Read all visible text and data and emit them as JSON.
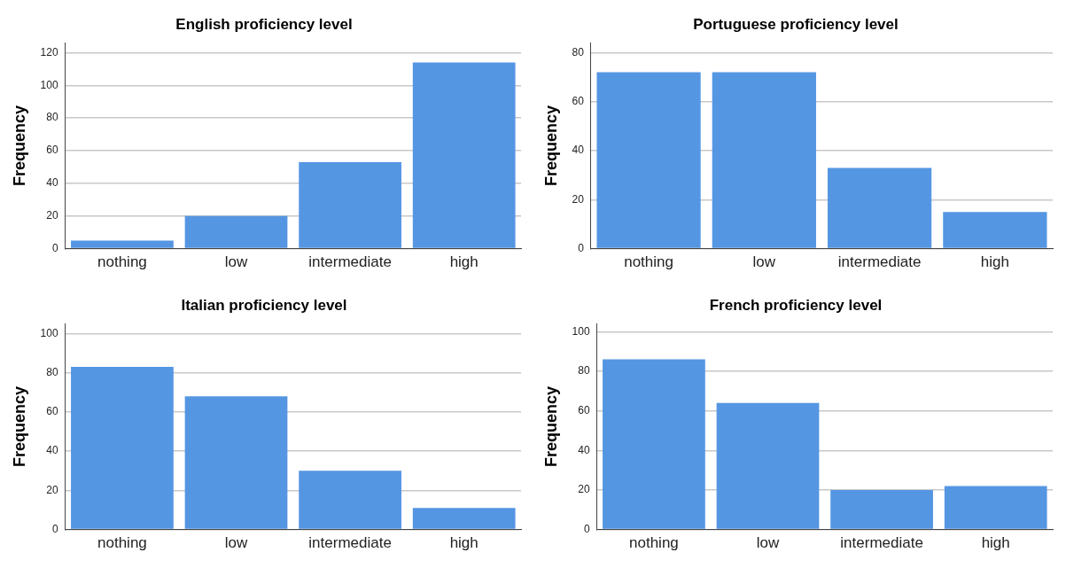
{
  "chart_data": [
    {
      "type": "bar",
      "title": "English proficiency level",
      "ylabel": "Frequency",
      "categories": [
        "nothing",
        "low",
        "intermediate",
        "high"
      ],
      "values": [
        5,
        20,
        53,
        114
      ],
      "color": "#5596e3",
      "ylim": [
        0,
        126
      ],
      "yticks": [
        0,
        20,
        40,
        60,
        80,
        100,
        120
      ],
      "grid": "y",
      "legend": false
    },
    {
      "type": "bar",
      "title": "Portuguese proficiency level",
      "ylabel": "Frequency",
      "categories": [
        "nothing",
        "low",
        "intermediate",
        "high"
      ],
      "values": [
        72,
        72,
        33,
        15
      ],
      "color": "#5596e3",
      "ylim": [
        0,
        84
      ],
      "yticks": [
        0,
        20,
        40,
        60,
        80
      ],
      "grid": "y",
      "legend": false
    },
    {
      "type": "bar",
      "title": "Italian proficiency level",
      "ylabel": "Frequency",
      "categories": [
        "nothing",
        "low",
        "intermediate",
        "high"
      ],
      "values": [
        83,
        68,
        30,
        11
      ],
      "color": "#5596e3",
      "ylim": [
        0,
        105
      ],
      "yticks": [
        0,
        20,
        40,
        60,
        80,
        100
      ],
      "grid": "y",
      "legend": false
    },
    {
      "type": "bar",
      "title": "French proficiency level",
      "ylabel": "Frequency",
      "categories": [
        "nothing",
        "low",
        "intermediate",
        "high"
      ],
      "values": [
        86,
        64,
        20,
        22
      ],
      "color": "#5596e3",
      "ylim": [
        0,
        104
      ],
      "yticks": [
        0,
        20,
        40,
        60,
        80,
        100
      ],
      "grid": "y",
      "legend": false
    }
  ]
}
